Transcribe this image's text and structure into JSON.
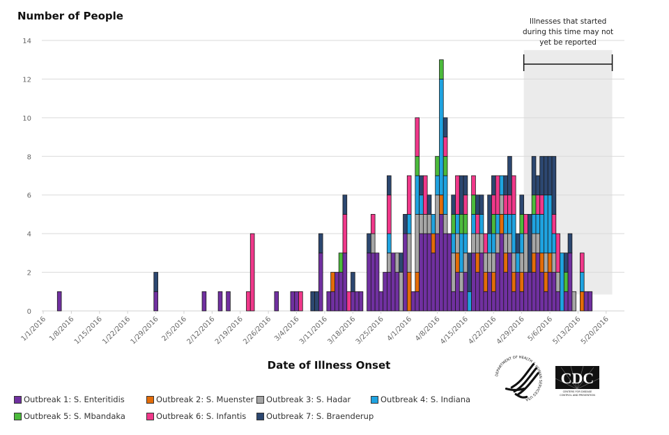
{
  "chart_data": {
    "type": "bar",
    "stacked": true,
    "title": "",
    "ylabel": "Number of People",
    "xlabel": "Date of Illness Onset",
    "ylim": [
      0,
      14
    ],
    "yticks": [
      0,
      2,
      4,
      6,
      8,
      10,
      12,
      14
    ],
    "grid": true,
    "x_start": "1/1/2016",
    "x_end": "5/21/2016",
    "x_unit": "day",
    "xtick_labels": [
      "1/1/2016",
      "1/8/2016",
      "1/15/2016",
      "1/22/2016",
      "1/29/2016",
      "2/5/2016",
      "2/12/2016",
      "2/19/2016",
      "2/26/2016",
      "3/4/2016",
      "3/11/2016",
      "3/18/2016",
      "3/25/2016",
      "4/1/2016",
      "4/8/2016",
      "4/15/2016",
      "4/22/2016",
      "4/29/2016",
      "5/6/2016",
      "5/13/2016",
      "5/20/2016"
    ],
    "legend_position": "bottom",
    "series": [
      {
        "name": "Outbreak 1: S. Enteritidis",
        "color": "#7030a0"
      },
      {
        "name": "Outbreak 2: S. Muenster",
        "color": "#e36c09"
      },
      {
        "name": "Outbreak 3: S. Hadar",
        "color": "#a6a6a6"
      },
      {
        "name": "Outbreak 4: S. Indiana",
        "color": "#1fa3e0"
      },
      {
        "name": "Outbreak 5: S. Mbandaka",
        "color": "#4cbb3c"
      },
      {
        "name": "Outbreak 6: S. Infantis",
        "color": "#f0388a"
      },
      {
        "name": "Outbreak 7: S. Braenderup",
        "color": "#2c4770"
      }
    ],
    "bars_note": "Each entry: day offset from 1/1/2016 and stacked counts per series in legend order [O1,O2,O3,O4,O5,O6,O7]; values estimated from gridlines",
    "bars": [
      {
        "day": 3,
        "counts": [
          1,
          0,
          0,
          0,
          0,
          0,
          0
        ]
      },
      {
        "day": 27,
        "counts": [
          1,
          0,
          0,
          0,
          0,
          0,
          1
        ]
      },
      {
        "day": 39,
        "counts": [
          1,
          0,
          0,
          0,
          0,
          0,
          0
        ]
      },
      {
        "day": 43,
        "counts": [
          1,
          0,
          0,
          0,
          0,
          0,
          0
        ]
      },
      {
        "day": 45,
        "counts": [
          1,
          0,
          0,
          0,
          0,
          0,
          0
        ]
      },
      {
        "day": 50,
        "counts": [
          0,
          0,
          0,
          0,
          0,
          1,
          0
        ]
      },
      {
        "day": 51,
        "counts": [
          0,
          0,
          0,
          0,
          0,
          4,
          0
        ]
      },
      {
        "day": 57,
        "counts": [
          1,
          0,
          0,
          0,
          0,
          0,
          0
        ]
      },
      {
        "day": 61,
        "counts": [
          1,
          0,
          0,
          0,
          0,
          0,
          0
        ]
      },
      {
        "day": 62,
        "counts": [
          1,
          0,
          0,
          0,
          0,
          0,
          0
        ]
      },
      {
        "day": 63,
        "counts": [
          0,
          0,
          0,
          0,
          0,
          1,
          0
        ]
      },
      {
        "day": 66,
        "counts": [
          0,
          0,
          0,
          0,
          0,
          0,
          1
        ]
      },
      {
        "day": 67,
        "counts": [
          0,
          0,
          0,
          0,
          0,
          0,
          1
        ]
      },
      {
        "day": 68,
        "counts": [
          3,
          0,
          0,
          0,
          0,
          0,
          1
        ]
      },
      {
        "day": 70,
        "counts": [
          1,
          0,
          0,
          0,
          0,
          0,
          0
        ]
      },
      {
        "day": 71,
        "counts": [
          1,
          1,
          0,
          0,
          0,
          0,
          0
        ]
      },
      {
        "day": 72,
        "counts": [
          2,
          0,
          0,
          0,
          0,
          0,
          0
        ]
      },
      {
        "day": 73,
        "counts": [
          2,
          0,
          0,
          0,
          1,
          0,
          0
        ]
      },
      {
        "day": 74,
        "counts": [
          3,
          0,
          0,
          0,
          0,
          2,
          1
        ]
      },
      {
        "day": 75,
        "counts": [
          0,
          0,
          0,
          0,
          0,
          1,
          0
        ]
      },
      {
        "day": 76,
        "counts": [
          1,
          0,
          0,
          0,
          0,
          0,
          1
        ]
      },
      {
        "day": 77,
        "counts": [
          1,
          0,
          0,
          0,
          0,
          0,
          0
        ]
      },
      {
        "day": 78,
        "counts": [
          1,
          0,
          0,
          0,
          0,
          0,
          0
        ]
      },
      {
        "day": 80,
        "counts": [
          3,
          0,
          0,
          0,
          0,
          0,
          1
        ]
      },
      {
        "day": 81,
        "counts": [
          3,
          0,
          1,
          0,
          0,
          1,
          0
        ]
      },
      {
        "day": 82,
        "counts": [
          3,
          0,
          0,
          0,
          0,
          0,
          0
        ]
      },
      {
        "day": 83,
        "counts": [
          1,
          0,
          0,
          0,
          0,
          0,
          0
        ]
      },
      {
        "day": 84,
        "counts": [
          2,
          0,
          0,
          0,
          0,
          0,
          0
        ]
      },
      {
        "day": 85,
        "counts": [
          2,
          0,
          1,
          1,
          0,
          2,
          1
        ]
      },
      {
        "day": 86,
        "counts": [
          3,
          0,
          0,
          0,
          0,
          0,
          0
        ]
      },
      {
        "day": 87,
        "counts": [
          2,
          0,
          1,
          0,
          0,
          0,
          0
        ]
      },
      {
        "day": 88,
        "counts": [
          0,
          0,
          2,
          0,
          0,
          0,
          1
        ]
      },
      {
        "day": 89,
        "counts": [
          4,
          0,
          0,
          0,
          0,
          0,
          1
        ]
      },
      {
        "day": 90,
        "counts": [
          0,
          2,
          2,
          1,
          0,
          2,
          0
        ]
      },
      {
        "day": 91,
        "counts": [
          1,
          0,
          0,
          0,
          0,
          0,
          0
        ]
      },
      {
        "day": 92,
        "counts": [
          1,
          1,
          3,
          2,
          1,
          2,
          0
        ]
      },
      {
        "day": 93,
        "counts": [
          4,
          0,
          1,
          1,
          0,
          0,
          1
        ]
      },
      {
        "day": 94,
        "counts": [
          4,
          0,
          1,
          0,
          0,
          2,
          0
        ]
      },
      {
        "day": 95,
        "counts": [
          4,
          0,
          1,
          0,
          0,
          0,
          1
        ]
      },
      {
        "day": 96,
        "counts": [
          3,
          1,
          0,
          1,
          0,
          0,
          0
        ]
      },
      {
        "day": 97,
        "counts": [
          4,
          0,
          2,
          1,
          1,
          0,
          0
        ]
      },
      {
        "day": 98,
        "counts": [
          5,
          1,
          0,
          6,
          1,
          0,
          0
        ]
      },
      {
        "day": 99,
        "counts": [
          4,
          0,
          1,
          2,
          1,
          1,
          1
        ]
      },
      {
        "day": 100,
        "counts": [
          4,
          0,
          0,
          0,
          0,
          0,
          0
        ]
      },
      {
        "day": 101,
        "counts": [
          1,
          0,
          2,
          1,
          1,
          0,
          1
        ]
      },
      {
        "day": 102,
        "counts": [
          2,
          1,
          1,
          1,
          0,
          2,
          0
        ]
      },
      {
        "day": 103,
        "counts": [
          1,
          0,
          1,
          2,
          1,
          0,
          2
        ]
      },
      {
        "day": 104,
        "counts": [
          2,
          0,
          1,
          1,
          1,
          1,
          1
        ]
      },
      {
        "day": 105,
        "counts": [
          0,
          0,
          0,
          1,
          0,
          0,
          2
        ]
      },
      {
        "day": 106,
        "counts": [
          3,
          0,
          1,
          1,
          1,
          1,
          0
        ]
      },
      {
        "day": 107,
        "counts": [
          2,
          1,
          1,
          0,
          0,
          1,
          1
        ]
      },
      {
        "day": 108,
        "counts": [
          3,
          0,
          1,
          1,
          0,
          0,
          1
        ]
      },
      {
        "day": 109,
        "counts": [
          1,
          1,
          1,
          0,
          0,
          1,
          0
        ]
      },
      {
        "day": 110,
        "counts": [
          2,
          0,
          1,
          1,
          0,
          0,
          2
        ]
      },
      {
        "day": 111,
        "counts": [
          1,
          1,
          1,
          1,
          1,
          1,
          1
        ]
      },
      {
        "day": 112,
        "counts": [
          3,
          0,
          1,
          1,
          0,
          2,
          0
        ]
      },
      {
        "day": 113,
        "counts": [
          4,
          1,
          1,
          1,
          0,
          0,
          0
        ]
      },
      {
        "day": 114,
        "counts": [
          2,
          1,
          1,
          1,
          0,
          1,
          1
        ]
      },
      {
        "day": 115,
        "counts": [
          3,
          0,
          1,
          1,
          0,
          1,
          2
        ]
      },
      {
        "day": 116,
        "counts": [
          1,
          1,
          1,
          2,
          0,
          2,
          0
        ]
      },
      {
        "day": 117,
        "counts": [
          2,
          0,
          0,
          1,
          0,
          0,
          1
        ]
      },
      {
        "day": 118,
        "counts": [
          1,
          1,
          1,
          1,
          1,
          0,
          1
        ]
      },
      {
        "day": 119,
        "counts": [
          2,
          0,
          2,
          0,
          0,
          1,
          0
        ]
      },
      {
        "day": 120,
        "counts": [
          2,
          0,
          0,
          0,
          0,
          0,
          3
        ]
      },
      {
        "day": 121,
        "counts": [
          2,
          1,
          1,
          1,
          1,
          0,
          2
        ]
      },
      {
        "day": 122,
        "counts": [
          3,
          0,
          1,
          1,
          0,
          1,
          1
        ]
      },
      {
        "day": 123,
        "counts": [
          2,
          1,
          0,
          2,
          0,
          1,
          2
        ]
      },
      {
        "day": 124,
        "counts": [
          1,
          1,
          1,
          3,
          0,
          0,
          2
        ]
      },
      {
        "day": 125,
        "counts": [
          2,
          1,
          0,
          3,
          0,
          0,
          2
        ]
      },
      {
        "day": 126,
        "counts": [
          2,
          0,
          1,
          1,
          0,
          1,
          3
        ]
      },
      {
        "day": 127,
        "counts": [
          1,
          0,
          1,
          0,
          0,
          2,
          0
        ]
      },
      {
        "day": 128,
        "counts": [
          0,
          0,
          0,
          3,
          0,
          0,
          0
        ]
      },
      {
        "day": 129,
        "counts": [
          1,
          0,
          0,
          0,
          1,
          0,
          1
        ]
      },
      {
        "day": 130,
        "counts": [
          3,
          0,
          0,
          0,
          0,
          0,
          1
        ]
      },
      {
        "day": 131,
        "counts": [
          0,
          0,
          1,
          0,
          0,
          0,
          0
        ]
      },
      {
        "day": 133,
        "counts": [
          0,
          1,
          0,
          1,
          0,
          1,
          0
        ]
      },
      {
        "day": 134,
        "counts": [
          1,
          0,
          0,
          0,
          0,
          0,
          0
        ]
      },
      {
        "day": 135,
        "counts": [
          1,
          0,
          0,
          0,
          0,
          0,
          0
        ]
      }
    ],
    "annotation": {
      "text_lines": [
        "Illnesses that started",
        "during this time may not",
        "yet be reported"
      ],
      "from_day": 119,
      "to_day": 141,
      "shade_color": "#ebebeb"
    }
  },
  "logos": {
    "hhs": "hhs-eagle-seal",
    "cdc_text": "CDC",
    "cdc_tagline_1": "CENTERS FOR DISEASE",
    "cdc_tagline_2": "CONTROL AND PREVENTION",
    "hhs_ring_text": "DEPARTMENT OF HEALTH & HUMAN SERVICES USA"
  }
}
